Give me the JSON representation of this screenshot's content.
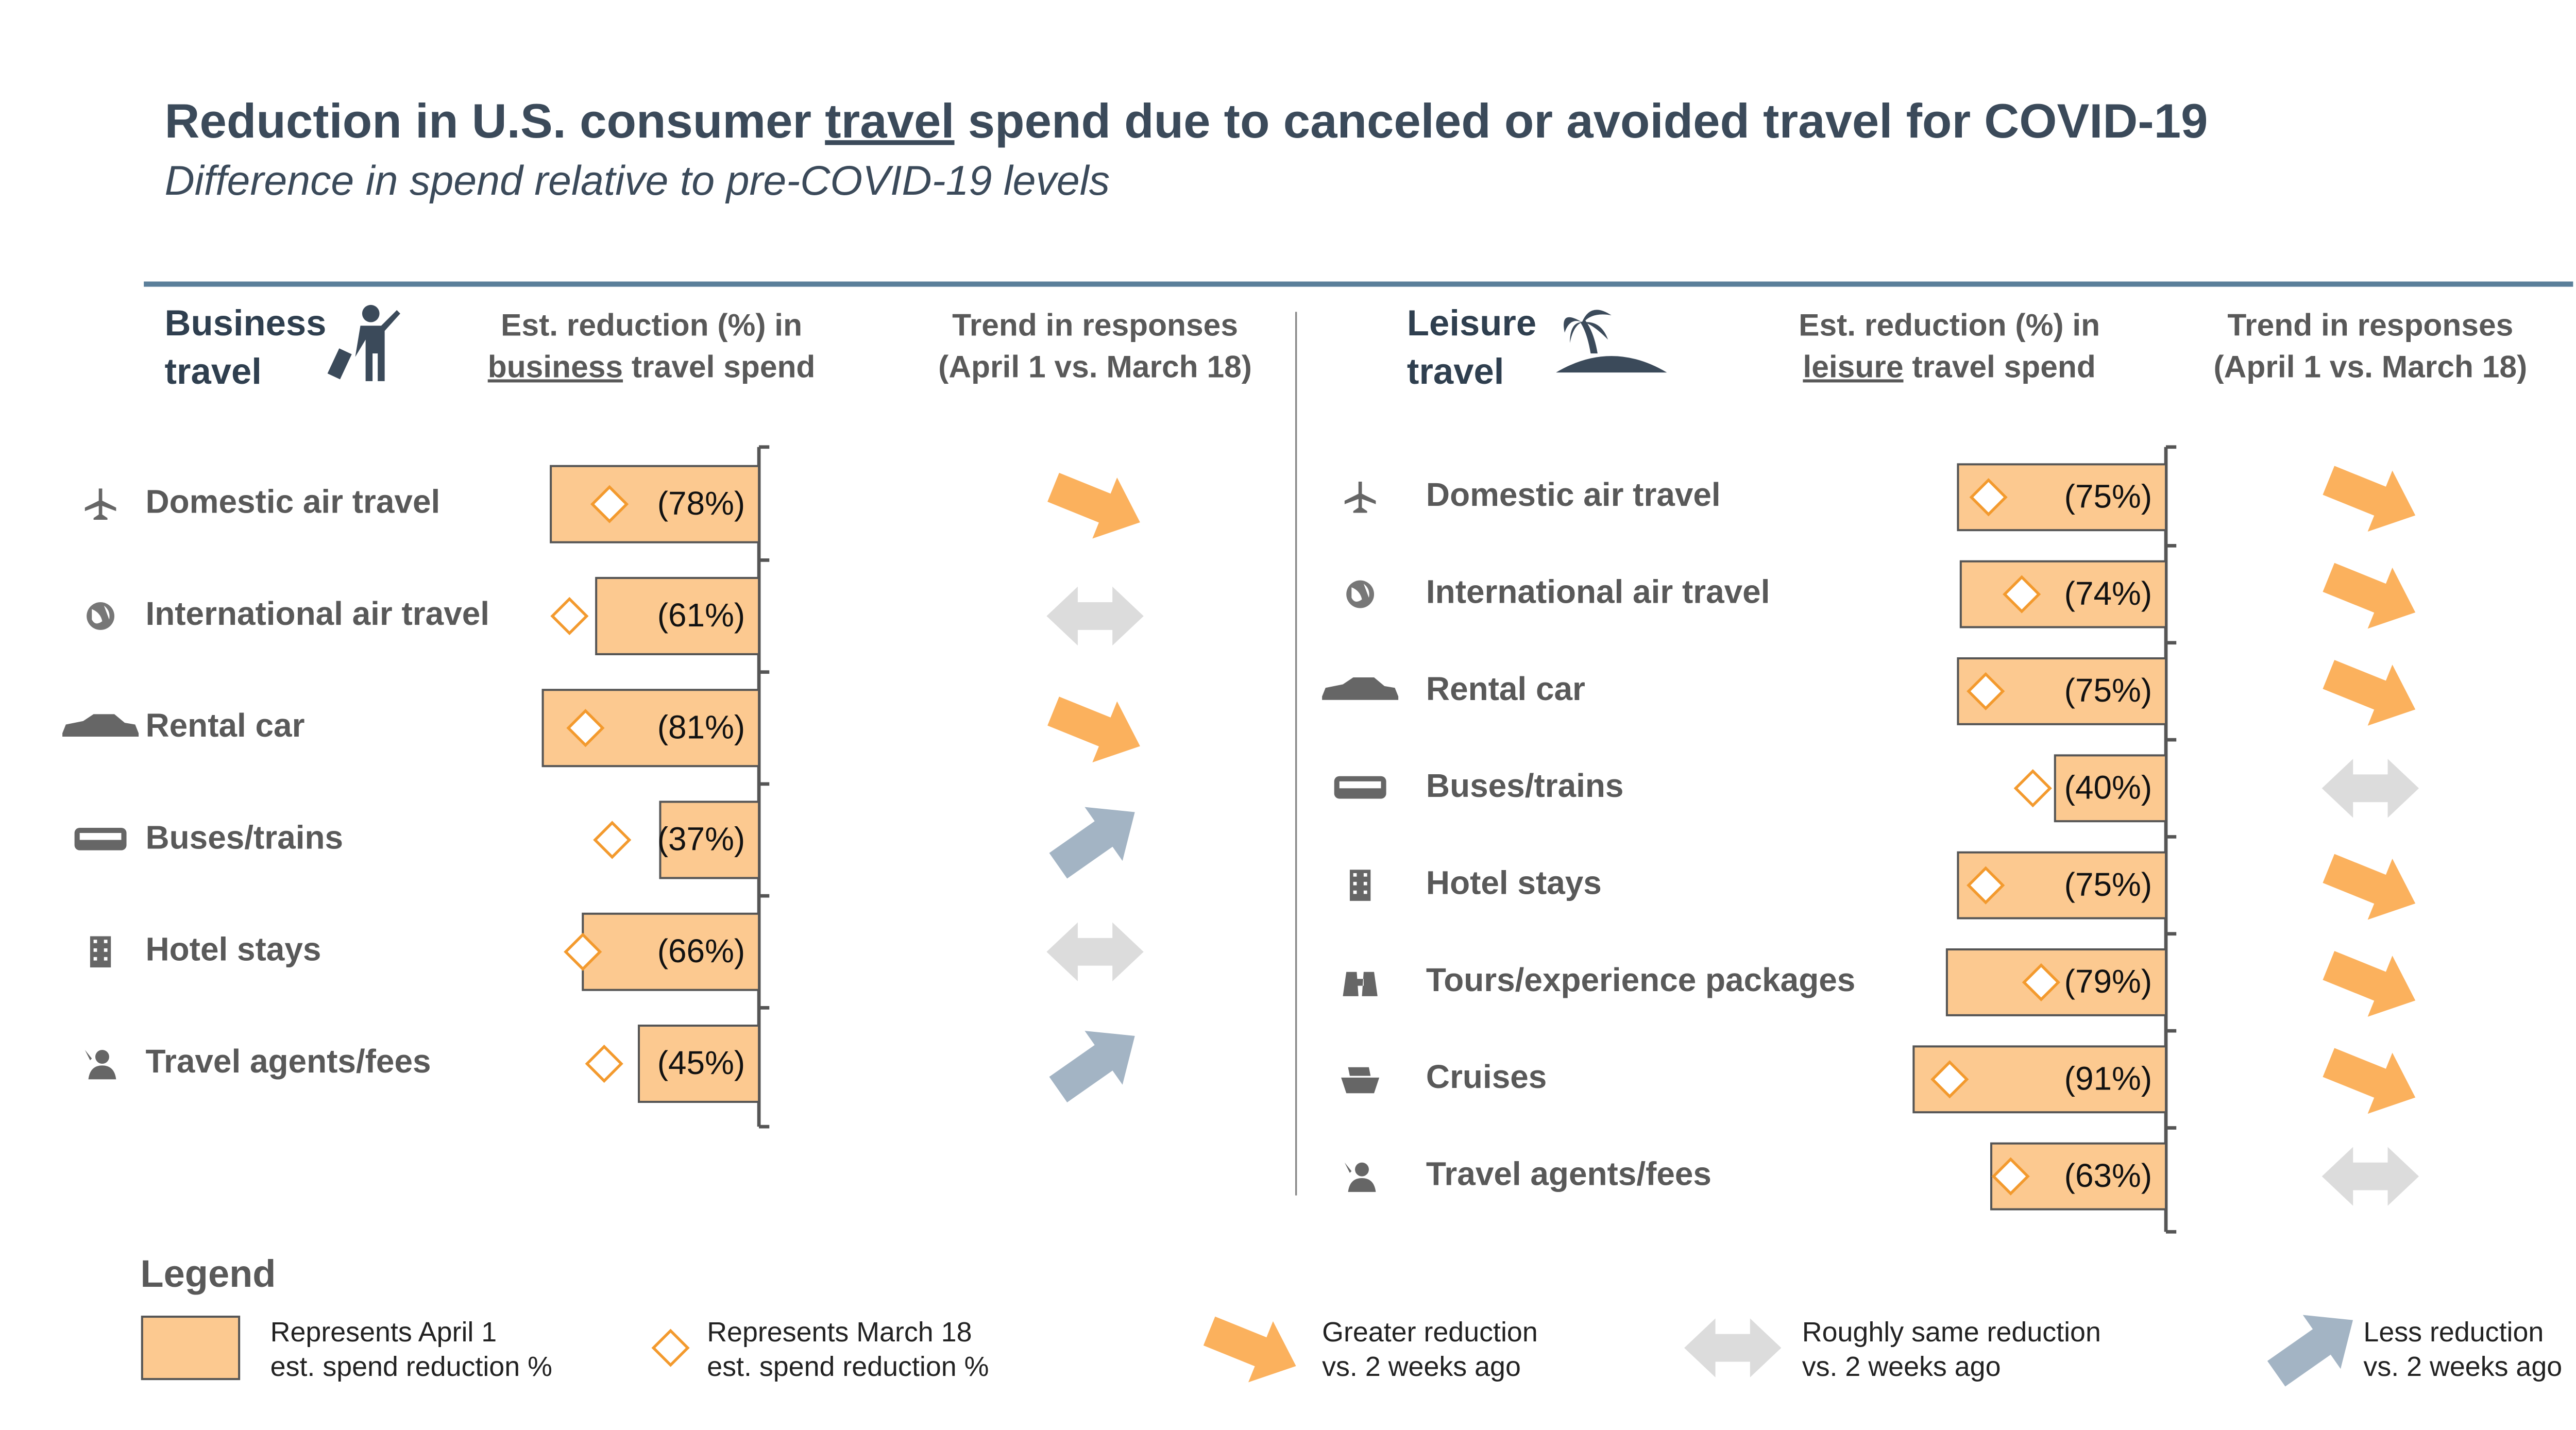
{
  "title": [
    "Reduction in U.S. consumer",
    "travel",
    "spend due to canceled or avoided travel for COVID-19"
  ],
  "subtitle": "Difference in spend relative to pre-COVID-19 levels",
  "chart_data": [
    {
      "type": "bar",
      "orientation": "horizontal",
      "section_title": [
        "Business",
        "travel"
      ],
      "value_header": [
        "Est. reduction (%) in",
        "business",
        "travel spend"
      ],
      "trend_header": [
        "Trend in responses",
        "(April 1 vs. March 18)"
      ],
      "categories": [
        "Domestic air travel",
        "International air travel",
        "Rental car",
        "Buses/trains",
        "Hotel stays",
        "Travel agents/fees"
      ],
      "series": [
        {
          "color": "#fcc990",
          "values": [
            78,
            61,
            81,
            37,
            66,
            45
          ],
          "value_labels": [
            "(78%)",
            "(61%)",
            "(81%)",
            "(37%)",
            "(66%)",
            "(45%)"
          ]
        },
        {
          "color": "#f39a2e",
          "values": [
            56,
            71,
            65,
            55,
            66,
            58
          ]
        }
      ],
      "trend": [
        "greater",
        "same",
        "greater",
        "less",
        "same",
        "less"
      ]
    },
    {
      "type": "bar",
      "orientation": "horizontal",
      "section_title": [
        "Leisure",
        "travel"
      ],
      "value_header": [
        "Est. reduction (%) in",
        "leisure",
        "travel spend"
      ],
      "trend_header": [
        "Trend in responses",
        "(April 1 vs. March 18)"
      ],
      "categories": [
        "Domestic air travel",
        "International air travel",
        "Rental car",
        "Buses/trains",
        "Hotel stays",
        "Tours/experience packages",
        "Cruises",
        "Travel agents/fees"
      ],
      "series": [
        {
          "color": "#fcc990",
          "values": [
            75,
            74,
            75,
            40,
            75,
            79,
            91,
            63
          ],
          "value_labels": [
            "(75%)",
            "(74%)",
            "(75%)",
            "(40%)",
            "(75%)",
            "(79%)",
            "(91%)",
            "(63%)"
          ]
        },
        {
          "color": "#f39a2e",
          "values": [
            64,
            52,
            65,
            48,
            65,
            45,
            78,
            56
          ]
        }
      ],
      "trend": [
        "greater",
        "greater",
        "greater",
        "same",
        "greater",
        "greater",
        "greater",
        "same"
      ]
    }
  ],
  "legend": {
    "title": "Legend",
    "items": [
      {
        "mark": "bar",
        "lines": [
          "Represents April 1",
          "est. spend reduction %"
        ]
      },
      {
        "mark": "diamond",
        "lines": [
          "Represents March 18",
          "est. spend reduction %"
        ]
      },
      {
        "mark": "greater",
        "color": "#fbb15d",
        "lines": [
          "Greater reduction",
          "vs. 2 weeks ago"
        ]
      },
      {
        "mark": "same",
        "color": "#dcdcdc",
        "lines": [
          "Roughly same reduction",
          "vs. 2 weeks ago"
        ]
      },
      {
        "mark": "less",
        "color": "#a3b4c4",
        "lines": [
          "Less reduction",
          "vs. 2 weeks ago"
        ]
      }
    ]
  }
}
